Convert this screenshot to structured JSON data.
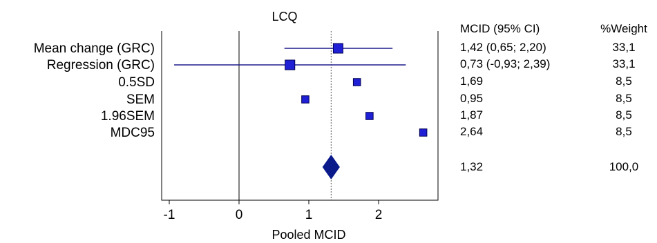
{
  "chart_data": {
    "type": "forest",
    "title": "LCQ",
    "xlabel": "Pooled MCID",
    "ylabel": "",
    "xlim": [
      -1.05,
      2.9
    ],
    "x_ticks": [
      -1,
      0,
      1,
      2
    ],
    "x_tick_labels": [
      "-1",
      "0",
      "1",
      "2"
    ],
    "reference_line": 0,
    "pooled_line": 1.32,
    "grid": false,
    "col_headers": {
      "estimate": "MCID (95% CI)",
      "weight": "%Weight"
    },
    "studies": [
      {
        "label": "Mean change (GRC)",
        "est": 1.42,
        "lo": 0.65,
        "hi": 2.2,
        "ci_text": "1,42 (0,65; 2,20)",
        "weight": "33,1",
        "weight_value": 33.1
      },
      {
        "label": "Regression (GRC)",
        "est": 0.73,
        "lo": -0.93,
        "hi": 2.39,
        "ci_text": "0,73 (-0,93; 2,39)",
        "weight": "33,1",
        "weight_value": 33.1
      },
      {
        "label": "0.5SD",
        "est": 1.69,
        "lo": null,
        "hi": null,
        "ci_text": "1,69",
        "weight": "8,5",
        "weight_value": 8.5
      },
      {
        "label": "SEM",
        "est": 0.95,
        "lo": null,
        "hi": null,
        "ci_text": "0,95",
        "weight": "8,5",
        "weight_value": 8.5
      },
      {
        "label": "1.96SEM",
        "est": 1.87,
        "lo": null,
        "hi": null,
        "ci_text": "1,87",
        "weight": "8,5",
        "weight_value": 8.5
      },
      {
        "label": "MDC95",
        "est": 2.64,
        "lo": null,
        "hi": null,
        "ci_text": "2,64",
        "weight": "8,5",
        "weight_value": 8.5
      }
    ],
    "pooled": {
      "est": 1.32,
      "ci_text": "1,32",
      "weight": "100,0"
    },
    "colors": {
      "marker": "#1f1fd6",
      "marker_edge": "#000050",
      "ci_line": "#1a1a8c",
      "diamond": "#0a1a8a",
      "axis": "#000000",
      "pooled_line": "#555555",
      "title": "#1a1aa6"
    }
  }
}
